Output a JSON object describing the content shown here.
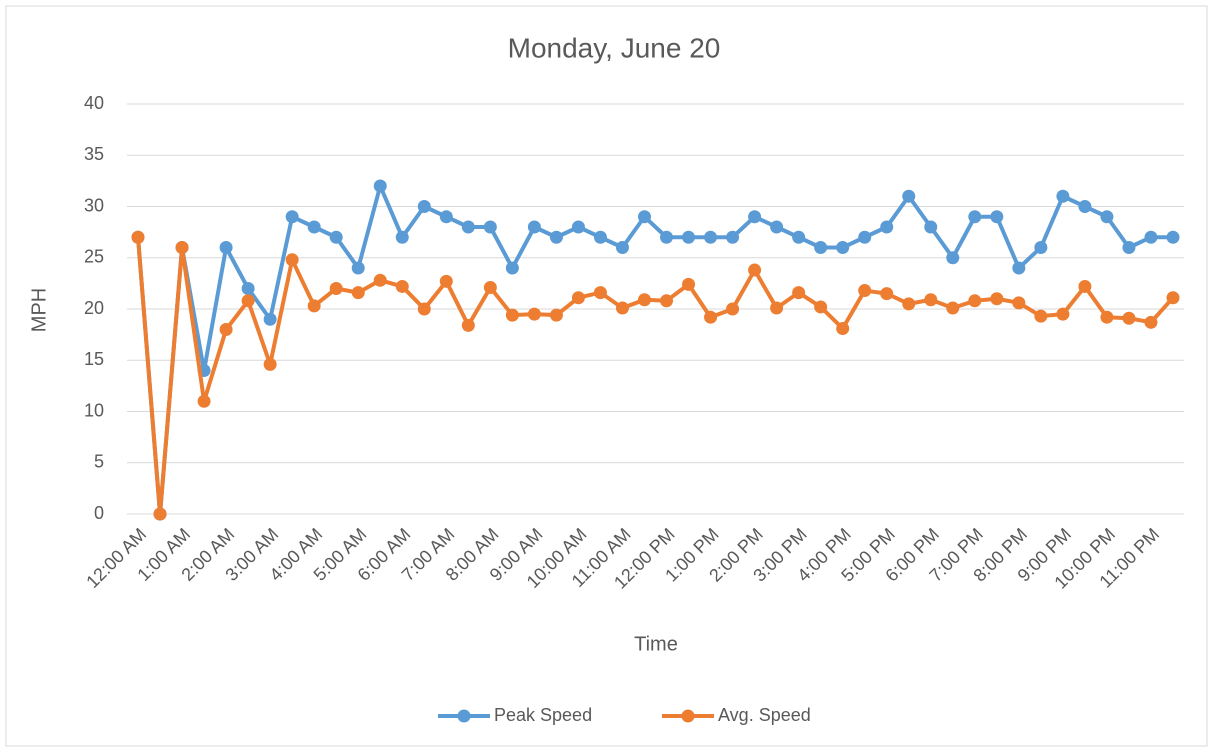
{
  "chart_data": {
    "type": "line",
    "title": "Monday, June 20",
    "x_label": "Time",
    "y_label": "MPH",
    "categories": [
      "12:00 AM",
      null,
      "1:00 AM",
      null,
      "2:00 AM",
      null,
      "3:00 AM",
      null,
      "4:00 AM",
      null,
      "5:00 AM",
      null,
      "6:00 AM",
      null,
      "7:00 AM",
      null,
      "8:00 AM",
      null,
      "9:00 AM",
      null,
      "10:00 AM",
      null,
      "11:00 AM",
      null,
      "12:00 PM",
      null,
      "1:00 PM",
      null,
      "2:00 PM",
      null,
      "3:00 PM",
      null,
      "4:00 PM",
      null,
      "5:00 PM",
      null,
      "6:00 PM",
      null,
      "7:00 PM",
      null,
      "8:00 PM",
      null,
      "9:00 PM",
      null,
      "10:00 PM",
      null,
      "11:00 PM",
      null
    ],
    "series": [
      {
        "name": "Peak Speed",
        "color": "#5b9bd5",
        "values": [
          27,
          0,
          26,
          14,
          26,
          22,
          19,
          29,
          28,
          27,
          24,
          32,
          27,
          30,
          29,
          28,
          28,
          24,
          28,
          27,
          28,
          27,
          26,
          29,
          27,
          27,
          27,
          27,
          29,
          28,
          27,
          26,
          26,
          27,
          28,
          31,
          28,
          25,
          29,
          29,
          24,
          26,
          31,
          30,
          29,
          26,
          27,
          27
        ]
      },
      {
        "name": "Avg. Speed",
        "color": "#ed7d31",
        "values": [
          27,
          0,
          26,
          11,
          18,
          20.8,
          14.6,
          24.8,
          20.3,
          22,
          21.6,
          22.8,
          22.2,
          20,
          22.7,
          18.4,
          22.1,
          19.4,
          19.5,
          19.4,
          21.1,
          21.6,
          20.1,
          20.9,
          20.8,
          22.4,
          19.2,
          20,
          23.8,
          20.1,
          21.6,
          20.2,
          18.1,
          21.8,
          21.5,
          20.5,
          20.9,
          20.1,
          20.8,
          21,
          20.6,
          19.3,
          19.5,
          22.2,
          19.2,
          19.1,
          18.7,
          21.1
        ]
      }
    ],
    "ylim": [
      0,
      40
    ],
    "yticks": [
      0,
      5,
      10,
      15,
      20,
      25,
      30,
      35,
      40
    ],
    "grid": true,
    "legend": "bottom"
  }
}
